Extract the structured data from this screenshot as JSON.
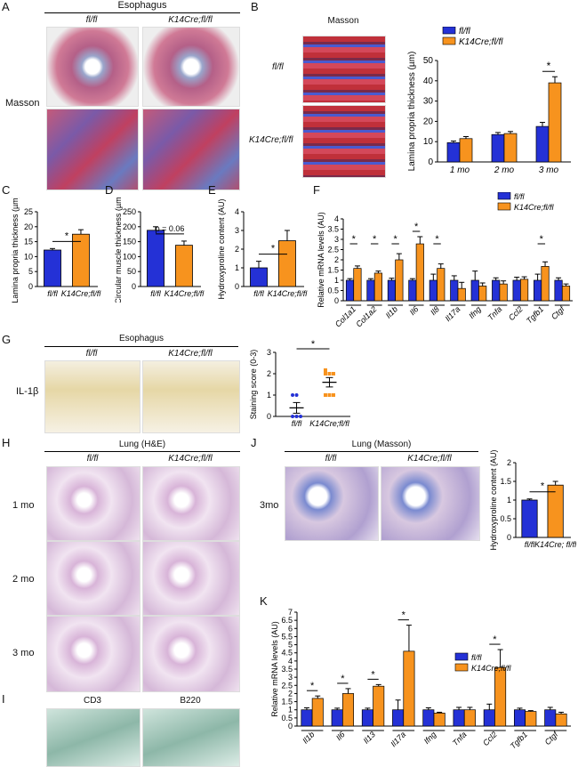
{
  "panel_letters": [
    "A",
    "B",
    "C",
    "D",
    "E",
    "F",
    "G",
    "H",
    "I",
    "J",
    "K"
  ],
  "panelA": {
    "title": "Esophagus",
    "col1": "fl/fl",
    "col2": "K14Cre;fl/fl",
    "row_label": "Masson"
  },
  "panelB": {
    "image_title": "Masson",
    "row1": "fl/fl",
    "row2": "K14Cre;fl/fl"
  },
  "panelG": {
    "title": "Esophagus",
    "col1": "fl/fl",
    "col2": "K14Cre;fl/fl",
    "row_label": "IL-1β"
  },
  "panelH": {
    "title": "Lung (H&E)",
    "col1": "fl/fl",
    "col2": "K14Cre;fl/fl",
    "rows": [
      "1 mo",
      "2 mo",
      "3 mo"
    ]
  },
  "panelI": {
    "col1": "CD3",
    "col2": "B220"
  },
  "panelJ": {
    "title": "Lung (Masson)",
    "col1": "fl/fl",
    "col2": "K14Cre;fl/fl",
    "row_label": "3mo"
  },
  "colors": {
    "blue": "#2431d6",
    "orange": "#f7931e"
  },
  "chart_data": [
    {
      "id": "B",
      "type": "bar",
      "ylabel": "Lamina propria thickness (µm)",
      "categories": [
        "1 mo",
        "2 mo",
        "3 mo"
      ],
      "ylim": [
        0,
        50
      ],
      "yticks": [
        0,
        10,
        20,
        30,
        40,
        50
      ],
      "series": [
        {
          "name": "fl/fl",
          "values": [
            9.5,
            13.5,
            17.5
          ],
          "err": [
            0.8,
            1.0,
            2.0
          ]
        },
        {
          "name": "K14Cre;fl/fl",
          "values": [
            11.5,
            14.0,
            39.0
          ],
          "err": [
            1.0,
            1.0,
            3.0
          ]
        }
      ],
      "sig": [
        {
          "cat": 2,
          "label": "*"
        }
      ],
      "legend": "top-right"
    },
    {
      "id": "C",
      "type": "bar",
      "ylabel": "Lamina propria thickness (µm)",
      "categories": [
        "fl/fl",
        "K14Cre;fl/fl"
      ],
      "ylim": [
        0,
        25
      ],
      "yticks": [
        0,
        5,
        10,
        15,
        20,
        25
      ],
      "values": [
        12.2,
        17.5
      ],
      "err": [
        0.5,
        1.5
      ],
      "sig_label": "*"
    },
    {
      "id": "D",
      "type": "bar",
      "ylabel": "Circular muscle thickness (µm)",
      "categories": [
        "fl/fl",
        "K14Cre;fl/fl"
      ],
      "ylim": [
        0,
        250
      ],
      "yticks": [
        0,
        50,
        100,
        150,
        200,
        250
      ],
      "values": [
        188,
        138
      ],
      "err": [
        12,
        14
      ],
      "sig_label": "p = 0.06"
    },
    {
      "id": "E",
      "type": "bar",
      "ylabel": "Hydroxyproline content (AU)",
      "categories": [
        "fl/fl",
        "K14Cre;fl/fl"
      ],
      "ylim": [
        0,
        4
      ],
      "yticks": [
        0,
        1,
        2,
        3,
        4
      ],
      "values": [
        1.0,
        2.45
      ],
      "err": [
        0.35,
        0.55
      ],
      "sig_label": "*"
    },
    {
      "id": "F",
      "type": "bar",
      "ylabel": "Relative mRNA levels (AU)",
      "categories": [
        "Col1a1",
        "Col1a2",
        "Il1b",
        "Il6",
        "Il8",
        "Il17a",
        "Ifng",
        "Tnfa",
        "Ccl2",
        "Tgfb1",
        "Ctgf"
      ],
      "ylim": [
        0,
        4
      ],
      "yticks": [
        0,
        0.5,
        1,
        1.5,
        2,
        2.5,
        3,
        3.5,
        4
      ],
      "series": [
        {
          "name": "fl/fl",
          "values": [
            1.0,
            1.0,
            1.0,
            1.0,
            1.0,
            1.0,
            1.0,
            1.0,
            1.0,
            1.0,
            1.0
          ],
          "err": [
            0.08,
            0.08,
            0.1,
            0.08,
            0.3,
            0.22,
            0.45,
            0.12,
            0.15,
            0.3,
            0.12
          ]
        },
        {
          "name": "K14Cre;fl/fl",
          "values": [
            1.58,
            1.35,
            2.0,
            2.78,
            1.58,
            0.6,
            0.72,
            0.82,
            1.05,
            1.68,
            0.72
          ],
          "err": [
            0.12,
            0.1,
            0.3,
            0.35,
            0.22,
            0.3,
            0.15,
            0.15,
            0.12,
            0.22,
            0.1
          ]
        }
      ],
      "sig": [
        0,
        1,
        2,
        3,
        4,
        9
      ],
      "legend": "top-right"
    },
    {
      "id": "G",
      "type": "scatter",
      "ylabel": "Staining score (0-3)",
      "categories": [
        "fl/fl",
        "K14Cre;fl/fl"
      ],
      "ylim": [
        0,
        3
      ],
      "yticks": [
        0,
        1,
        2,
        3
      ],
      "groups": [
        {
          "points": [
            0.0,
            0.0,
            0.0,
            1.0,
            1.0
          ],
          "mean": 0.4,
          "err": 0.25
        },
        {
          "points": [
            2.0,
            2.0,
            2.0,
            1.0,
            1.0,
            1.0,
            2.0
          ],
          "mean": 1.6,
          "err": 0.22
        }
      ],
      "sig_label": "*"
    },
    {
      "id": "J",
      "type": "bar",
      "ylabel": "Hydroxyproline content (AU)",
      "categories": [
        "fl/fl",
        "K14Cre; fl/fl"
      ],
      "ylim": [
        0,
        2
      ],
      "yticks": [
        0,
        0.5,
        1,
        1.5,
        2
      ],
      "values": [
        1.0,
        1.4
      ],
      "err": [
        0.03,
        0.1
      ],
      "sig_label": "*"
    },
    {
      "id": "K",
      "type": "bar",
      "ylabel": "Relative mRNA levels (AU)",
      "categories": [
        "Il1b",
        "Il6",
        "Il13",
        "Il17a",
        "Ifng",
        "Tnfa",
        "Ccl2",
        "Tgfb1",
        "Ctgf"
      ],
      "ylim": [
        0,
        7
      ],
      "yticks": [
        0,
        0.5,
        1,
        1.5,
        2,
        2.5,
        3,
        3.5,
        4,
        4.5,
        5,
        5.5,
        6,
        6.5,
        7
      ],
      "series": [
        {
          "name": "fl/fl",
          "values": [
            1.0,
            1.0,
            1.0,
            1.0,
            1.0,
            1.0,
            1.0,
            1.0,
            1.0
          ],
          "err": [
            0.12,
            0.1,
            0.1,
            0.6,
            0.12,
            0.15,
            0.35,
            0.1,
            0.15
          ]
        },
        {
          "name": "K14Cre;fl/fl",
          "values": [
            1.7,
            2.0,
            2.45,
            4.6,
            0.8,
            1.0,
            3.6,
            0.9,
            0.75
          ],
          "err": [
            0.15,
            0.3,
            0.1,
            1.6,
            0.05,
            0.15,
            1.1,
            0.05,
            0.1
          ]
        }
      ],
      "sig": [
        0,
        1,
        2,
        3,
        6
      ],
      "legend": "top-right"
    }
  ]
}
